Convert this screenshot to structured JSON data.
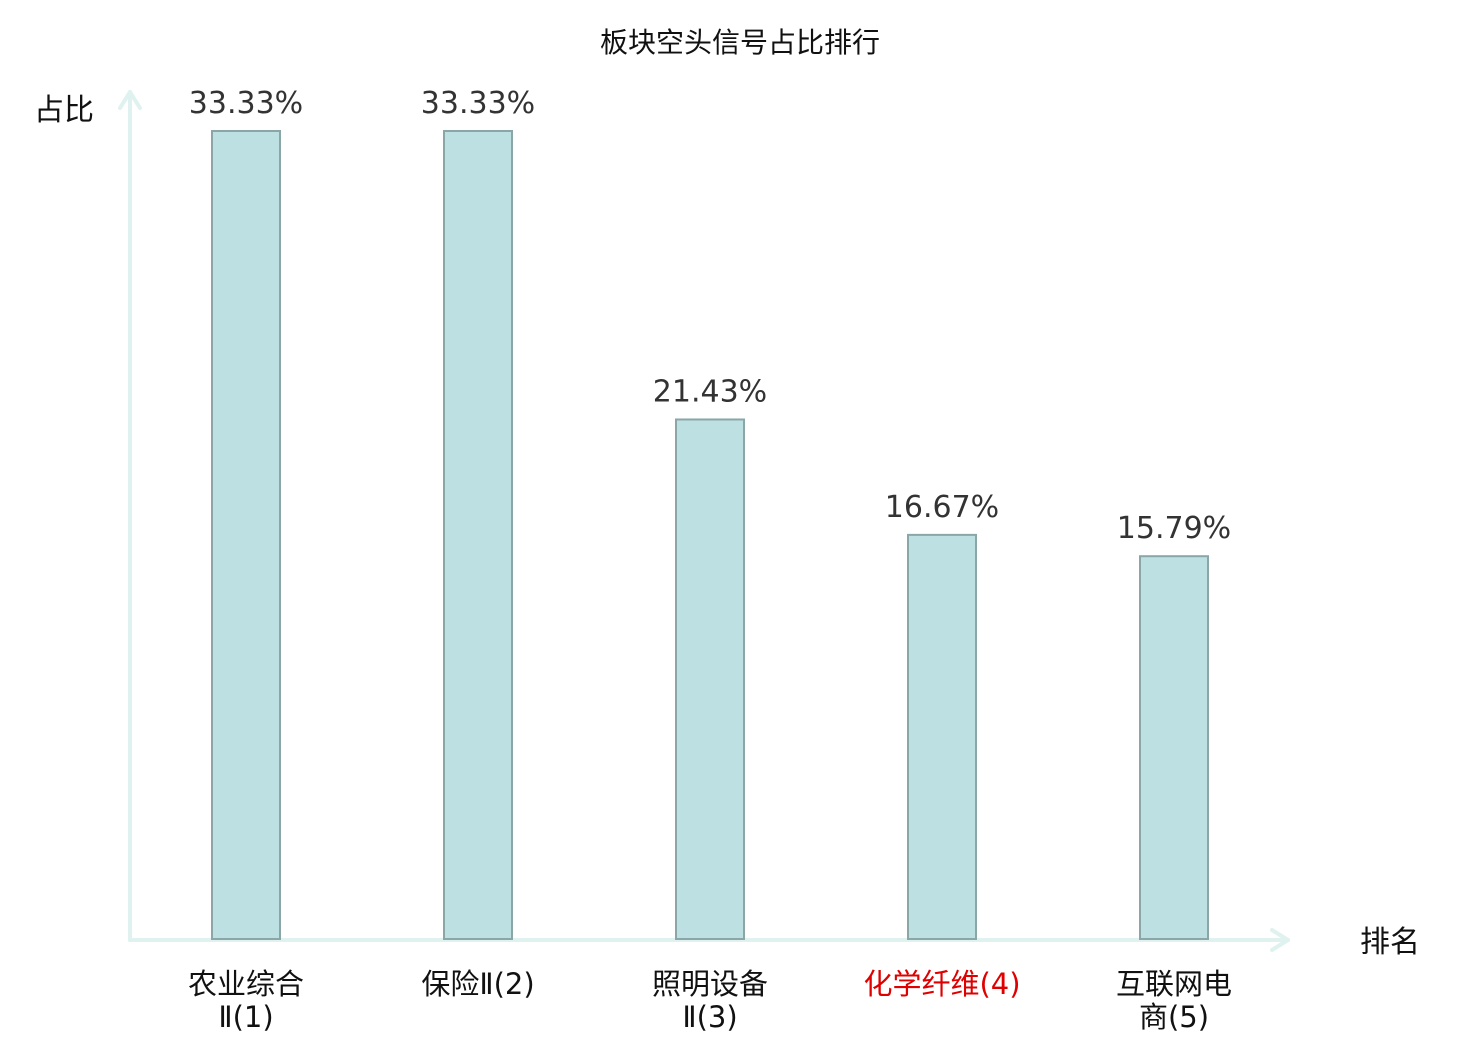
{
  "chart_data": {
    "type": "bar",
    "title": "板块空头信号占比排行",
    "ylabel": "占比",
    "xlabel": "排名",
    "categories": [
      [
        "农业综合",
        "Ⅱ(1)"
      ],
      [
        "保险Ⅱ(2)"
      ],
      [
        "照明设备",
        "Ⅱ(3)"
      ],
      [
        "化学纤维(4)"
      ],
      [
        "互联网电",
        "商(5)"
      ]
    ],
    "values": [
      33.33,
      33.33,
      21.43,
      16.67,
      15.79
    ],
    "value_labels": [
      "33.33%",
      "33.33%",
      "21.43%",
      "16.67%",
      "15.79%"
    ],
    "highlight_index": 3,
    "ylim": [
      0,
      33.33
    ],
    "grid": false,
    "colors": {
      "bar_fill": "#bde0e2",
      "bar_stroke": "#8aa6a7",
      "axis": "#dff2ef",
      "highlight_text": "#e00000"
    }
  }
}
